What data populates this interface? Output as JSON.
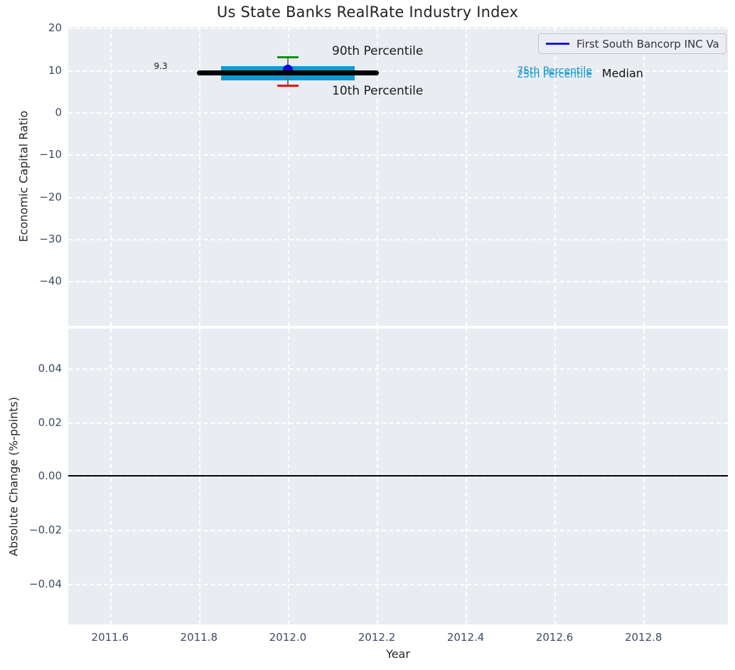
{
  "title": "Us State Banks RealRate Industry Index",
  "legend": {
    "label": "First South Bancorp INC Va",
    "line_color": "#1414f0"
  },
  "colors": {
    "axes_bg": "#e9edf1",
    "grid": "#ffffff",
    "tick_label": "#3d4c63",
    "band": "#0c9bd3",
    "median_line": "#000000",
    "company_dot": "#0202d8",
    "error_line": "#6f6f6f",
    "cap_high": "#169216",
    "cap_low": "#ea1010",
    "zero_line": "#000000"
  },
  "chart_data": [
    {
      "type": "errorbar_band",
      "title": "Us State Banks RealRate Industry Index",
      "ylabel": "Economic Capital Ratio",
      "xlim": [
        2011.506,
        2012.99
      ],
      "ylim": [
        -50.59,
        20.24
      ],
      "grid": "white-dashed",
      "legend_position": "upper right",
      "legend_label": "First South Bancorp INC Va",
      "xticks": {
        "values": [
          2011.6,
          2011.8,
          2012.0,
          2012.2,
          2012.4,
          2012.6,
          2012.8
        ],
        "labels": [
          "2011.6",
          "2011.8",
          "2012.0",
          "2012.2",
          "2012.4",
          "2012.6",
          "2012.8"
        ],
        "show_labels": false
      },
      "yticks": {
        "values": [
          20,
          10,
          0,
          -10,
          -20,
          -30,
          -40
        ],
        "labels": [
          "20",
          "10",
          "0",
          "−10",
          "−20",
          "−30",
          "−40"
        ]
      },
      "series": {
        "year": 2012.0,
        "company_value": 10.1,
        "median": 9.3,
        "median_x_span": [
          2011.8,
          2012.2
        ],
        "p75": 11.0,
        "p25": 7.55,
        "band_x_span": [
          2011.85,
          2012.15
        ],
        "p90": 13.0,
        "p10": 6.4
      },
      "annotations": [
        {
          "id": "median-value",
          "text": "9.3",
          "x": 2011.714,
          "y": 10.9,
          "size": 12,
          "color": "#1a1a1a"
        },
        {
          "id": "p90-label",
          "text": "90th Percentile",
          "x": 2012.202,
          "y": 14.5,
          "size": 17,
          "color": "#1a1a1a"
        },
        {
          "id": "p10-label",
          "text": "10th Percentile",
          "x": 2012.202,
          "y": 5.0,
          "size": 17,
          "color": "#1a1a1a"
        },
        {
          "id": "p75-label",
          "text": "75th Percentile",
          "x": 2012.6,
          "y": 9.78,
          "size": 14,
          "color": "#1596cd"
        },
        {
          "id": "p25-label",
          "text": "25th Percentile",
          "x": 2012.6,
          "y": 9.02,
          "size": 14,
          "color": "#1596cd"
        },
        {
          "id": "median-label",
          "text": "Median",
          "x": 2012.753,
          "y": 9.3,
          "size": 16,
          "color": "#111111"
        }
      ]
    },
    {
      "type": "line",
      "ylabel": "Absolute Change (%-points)",
      "xlabel": "Year",
      "xlim": [
        2011.506,
        2012.99
      ],
      "ylim": [
        -0.0551,
        0.0548
      ],
      "grid": "white-dashed",
      "xticks": {
        "values": [
          2011.6,
          2011.8,
          2012.0,
          2012.2,
          2012.4,
          2012.6,
          2012.8
        ],
        "labels": [
          "2011.6",
          "2011.8",
          "2012.0",
          "2012.2",
          "2012.4",
          "2012.6",
          "2012.8"
        ],
        "show_labels": true
      },
      "yticks": {
        "values": [
          0.04,
          0.02,
          0.0,
          -0.02,
          -0.04
        ],
        "labels": [
          "0.04",
          "0.02",
          "0.00",
          "−0.02",
          "−0.04"
        ]
      },
      "zero_line": {
        "y": 0.0,
        "color": "#000000"
      }
    }
  ]
}
